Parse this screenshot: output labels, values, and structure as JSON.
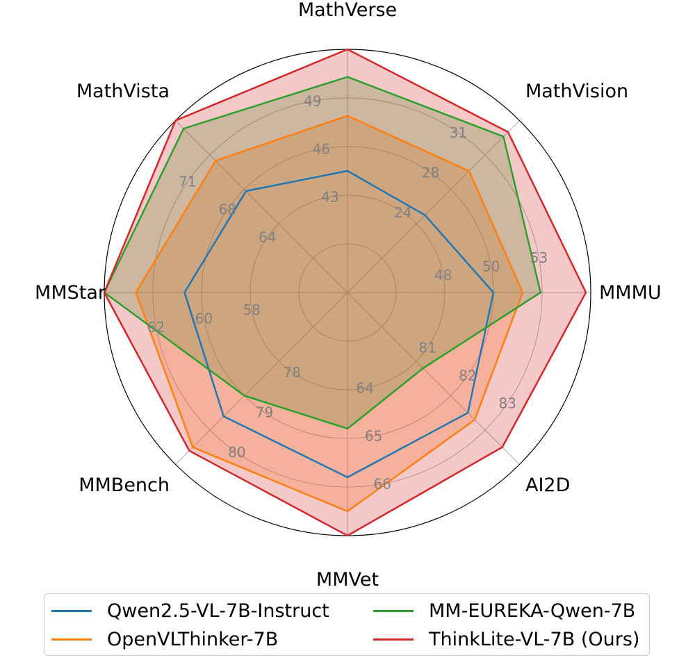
{
  "colors": {
    "grid": "#b0b0b0",
    "tick_text": "#808080",
    "frame": "#000000"
  },
  "chart_data": {
    "type": "radar",
    "axes": [
      "MathVerse",
      "MathVision",
      "MMMU",
      "AI2D",
      "MMVet",
      "MMBench",
      "MMStar",
      "MathVista"
    ],
    "axis_ticks": [
      [
        "43",
        "46",
        "49"
      ],
      [
        "24",
        "28",
        "31"
      ],
      [
        "48",
        "50",
        "53"
      ],
      [
        "81",
        "82",
        "83"
      ],
      [
        "64",
        "65",
        "66"
      ],
      [
        "78",
        "79",
        "80"
      ],
      [
        "58",
        "60",
        "62"
      ],
      [
        "64",
        "68",
        "71"
      ]
    ],
    "axis_tick_values": [
      [
        43,
        46,
        49
      ],
      [
        24,
        28,
        31
      ],
      [
        48,
        50,
        53
      ],
      [
        81,
        82,
        83
      ],
      [
        64,
        65,
        66
      ],
      [
        78,
        79,
        80
      ],
      [
        58,
        60,
        62
      ],
      [
        64,
        68,
        71
      ]
    ],
    "grid": true,
    "legend_position": "bottom",
    "series": [
      {
        "name": "Qwen2.5-VL-7B-Instruct",
        "color": "#1f77b4",
        "fill": false,
        "values": [
          44.5,
          25.0,
          50.0,
          82.5,
          65.8,
          79.6,
          60.7,
          67.8
        ]
      },
      {
        "name": "OpenVLThinker-7B",
        "color": "#ff7f0e",
        "fill": true,
        "values": [
          47.9,
          29.6,
          51.8,
          82.7,
          66.5,
          80.5,
          62.7,
          70.5
        ]
      },
      {
        "name": "MM-EUREKA-Qwen-7B",
        "color": "#2ca02c",
        "fill": true,
        "values": [
          50.3,
          32.6,
          52.9,
          81.2,
          64.8,
          79.0,
          64.9,
          73.3
        ]
      },
      {
        "name": "ThinkLite-VL-7B (Ours)",
        "color": "#d62728",
        "fill": true,
        "values": [
          52.8,
          33.0,
          55.7,
          83.5,
          67.0,
          80.6,
          65.7,
          75.1
        ]
      }
    ]
  }
}
